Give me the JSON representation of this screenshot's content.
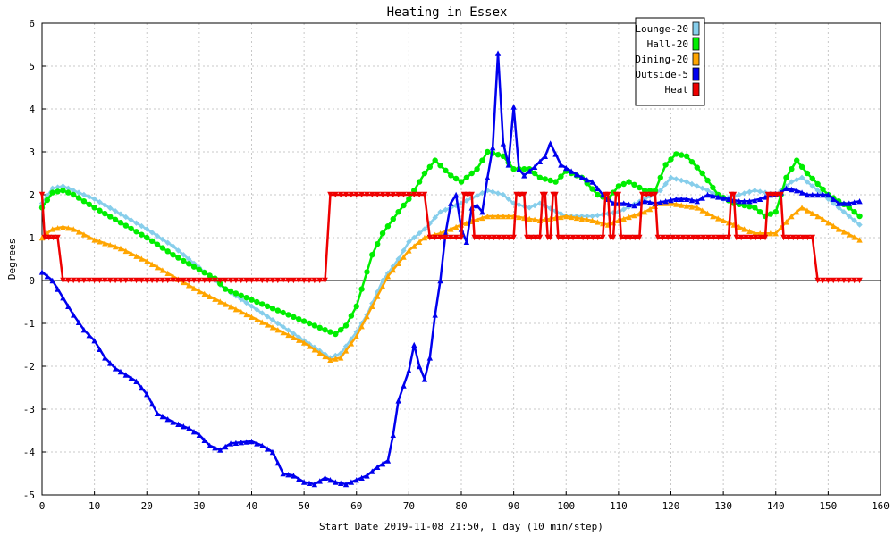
{
  "chart_data": {
    "type": "line",
    "title": "Heating in Essex",
    "xlabel": "Start Date 2019-11-08 21:50, 1 day (10 min/step)",
    "ylabel": "Degrees",
    "xlim": [
      0,
      160
    ],
    "ylim": [
      -5,
      6
    ],
    "x_ticks": [
      0,
      10,
      20,
      30,
      40,
      50,
      60,
      70,
      80,
      90,
      100,
      110,
      120,
      130,
      140,
      150,
      160
    ],
    "y_ticks": [
      -5,
      -4,
      -3,
      -2,
      -1,
      0,
      1,
      2,
      3,
      4,
      5,
      6
    ],
    "grid": true,
    "legend_position": "top-right",
    "series": [
      {
        "name": "Lounge-20",
        "color": "#87ceeb",
        "marker": "diamond",
        "points": [
          [
            0,
            1.8
          ],
          [
            2,
            2.15
          ],
          [
            4,
            2.2
          ],
          [
            6,
            2.1
          ],
          [
            10,
            1.9
          ],
          [
            15,
            1.55
          ],
          [
            20,
            1.2
          ],
          [
            25,
            0.8
          ],
          [
            30,
            0.3
          ],
          [
            35,
            -0.2
          ],
          [
            40,
            -0.6
          ],
          [
            45,
            -1.0
          ],
          [
            50,
            -1.4
          ],
          [
            55,
            -1.8
          ],
          [
            57,
            -1.7
          ],
          [
            60,
            -1.2
          ],
          [
            62,
            -0.8
          ],
          [
            65,
            0.0
          ],
          [
            68,
            0.5
          ],
          [
            70,
            0.9
          ],
          [
            73,
            1.2
          ],
          [
            76,
            1.6
          ],
          [
            80,
            1.8
          ],
          [
            85,
            2.1
          ],
          [
            88,
            2.0
          ],
          [
            90,
            1.8
          ],
          [
            93,
            1.7
          ],
          [
            95,
            1.8
          ],
          [
            100,
            1.5
          ],
          [
            105,
            1.5
          ],
          [
            110,
            1.6
          ],
          [
            115,
            1.9
          ],
          [
            118,
            2.1
          ],
          [
            120,
            2.4
          ],
          [
            123,
            2.3
          ],
          [
            127,
            2.1
          ],
          [
            130,
            1.9
          ],
          [
            133,
            2.0
          ],
          [
            136,
            2.1
          ],
          [
            140,
            2.0
          ],
          [
            143,
            2.3
          ],
          [
            145,
            2.4
          ],
          [
            148,
            2.1
          ],
          [
            152,
            1.7
          ],
          [
            156,
            1.3
          ]
        ]
      },
      {
        "name": "Hall-20",
        "color": "#00ee00",
        "marker": "circle",
        "points": [
          [
            0,
            1.7
          ],
          [
            2,
            2.05
          ],
          [
            4,
            2.1
          ],
          [
            6,
            2.0
          ],
          [
            10,
            1.7
          ],
          [
            15,
            1.35
          ],
          [
            20,
            1.0
          ],
          [
            25,
            0.6
          ],
          [
            30,
            0.25
          ],
          [
            33,
            0.05
          ],
          [
            35,
            -0.2
          ],
          [
            40,
            -0.45
          ],
          [
            45,
            -0.7
          ],
          [
            50,
            -0.95
          ],
          [
            55,
            -1.2
          ],
          [
            56,
            -1.25
          ],
          [
            58,
            -1.05
          ],
          [
            60,
            -0.6
          ],
          [
            62,
            0.2
          ],
          [
            63,
            0.6
          ],
          [
            65,
            1.1
          ],
          [
            68,
            1.6
          ],
          [
            70,
            1.9
          ],
          [
            73,
            2.5
          ],
          [
            75,
            2.8
          ],
          [
            78,
            2.45
          ],
          [
            80,
            2.3
          ],
          [
            83,
            2.6
          ],
          [
            85,
            3.0
          ],
          [
            88,
            2.9
          ],
          [
            90,
            2.6
          ],
          [
            93,
            2.6
          ],
          [
            95,
            2.4
          ],
          [
            98,
            2.3
          ],
          [
            100,
            2.55
          ],
          [
            103,
            2.4
          ],
          [
            106,
            2.0
          ],
          [
            108,
            1.9
          ],
          [
            110,
            2.2
          ],
          [
            112,
            2.3
          ],
          [
            115,
            2.1
          ],
          [
            117,
            2.1
          ],
          [
            119,
            2.7
          ],
          [
            121,
            2.95
          ],
          [
            123,
            2.9
          ],
          [
            126,
            2.5
          ],
          [
            129,
            2.0
          ],
          [
            132,
            1.8
          ],
          [
            136,
            1.7
          ],
          [
            138,
            1.5
          ],
          [
            140,
            1.6
          ],
          [
            142,
            2.4
          ],
          [
            144,
            2.8
          ],
          [
            146,
            2.5
          ],
          [
            150,
            2.0
          ],
          [
            154,
            1.7
          ],
          [
            156,
            1.5
          ]
        ]
      },
      {
        "name": "Dining-20",
        "color": "#ffa500",
        "marker": "triangle",
        "points": [
          [
            0,
            1.0
          ],
          [
            2,
            1.2
          ],
          [
            4,
            1.25
          ],
          [
            6,
            1.2
          ],
          [
            10,
            0.95
          ],
          [
            15,
            0.75
          ],
          [
            20,
            0.45
          ],
          [
            25,
            0.1
          ],
          [
            30,
            -0.25
          ],
          [
            35,
            -0.55
          ],
          [
            40,
            -0.85
          ],
          [
            45,
            -1.15
          ],
          [
            50,
            -1.45
          ],
          [
            55,
            -1.85
          ],
          [
            57,
            -1.8
          ],
          [
            60,
            -1.3
          ],
          [
            63,
            -0.6
          ],
          [
            66,
            0.1
          ],
          [
            70,
            0.7
          ],
          [
            73,
            1.0
          ],
          [
            76,
            1.1
          ],
          [
            80,
            1.3
          ],
          [
            85,
            1.5
          ],
          [
            90,
            1.5
          ],
          [
            95,
            1.4
          ],
          [
            100,
            1.5
          ],
          [
            105,
            1.4
          ],
          [
            108,
            1.3
          ],
          [
            110,
            1.4
          ],
          [
            115,
            1.6
          ],
          [
            118,
            1.8
          ],
          [
            120,
            1.8
          ],
          [
            125,
            1.7
          ],
          [
            128,
            1.5
          ],
          [
            132,
            1.3
          ],
          [
            136,
            1.1
          ],
          [
            140,
            1.1
          ],
          [
            143,
            1.5
          ],
          [
            145,
            1.7
          ],
          [
            148,
            1.5
          ],
          [
            152,
            1.2
          ],
          [
            156,
            0.95
          ]
        ]
      },
      {
        "name": "Outside-5",
        "color": "#0000ee",
        "marker": "triangle",
        "points": [
          [
            0,
            0.2
          ],
          [
            2,
            0.0
          ],
          [
            4,
            -0.4
          ],
          [
            6,
            -0.8
          ],
          [
            8,
            -1.15
          ],
          [
            10,
            -1.4
          ],
          [
            12,
            -1.8
          ],
          [
            14,
            -2.05
          ],
          [
            16,
            -2.2
          ],
          [
            18,
            -2.35
          ],
          [
            20,
            -2.65
          ],
          [
            22,
            -3.1
          ],
          [
            25,
            -3.3
          ],
          [
            28,
            -3.45
          ],
          [
            30,
            -3.6
          ],
          [
            32,
            -3.85
          ],
          [
            34,
            -3.95
          ],
          [
            36,
            -3.8
          ],
          [
            40,
            -3.75
          ],
          [
            42,
            -3.85
          ],
          [
            44,
            -4.0
          ],
          [
            46,
            -4.5
          ],
          [
            48,
            -4.55
          ],
          [
            50,
            -4.7
          ],
          [
            52,
            -4.75
          ],
          [
            54,
            -4.6
          ],
          [
            56,
            -4.7
          ],
          [
            58,
            -4.75
          ],
          [
            60,
            -4.65
          ],
          [
            62,
            -4.55
          ],
          [
            64,
            -4.35
          ],
          [
            66,
            -4.2
          ],
          [
            67,
            -3.6
          ],
          [
            68,
            -2.8
          ],
          [
            69,
            -2.45
          ],
          [
            70,
            -2.1
          ],
          [
            71,
            -1.5
          ],
          [
            72,
            -2.0
          ],
          [
            73,
            -2.3
          ],
          [
            74,
            -1.8
          ],
          [
            75,
            -0.8
          ],
          [
            76,
            0.0
          ],
          [
            77,
            1.1
          ],
          [
            78,
            1.8
          ],
          [
            79,
            2.0
          ],
          [
            80,
            1.2
          ],
          [
            81,
            0.9
          ],
          [
            82,
            1.7
          ],
          [
            83,
            1.75
          ],
          [
            84,
            1.6
          ],
          [
            85,
            2.4
          ],
          [
            86,
            3.1
          ],
          [
            87,
            5.3
          ],
          [
            88,
            3.2
          ],
          [
            89,
            2.7
          ],
          [
            90,
            4.05
          ],
          [
            91,
            2.6
          ],
          [
            92,
            2.45
          ],
          [
            94,
            2.65
          ],
          [
            96,
            2.9
          ],
          [
            97,
            3.2
          ],
          [
            99,
            2.7
          ],
          [
            101,
            2.55
          ],
          [
            103,
            2.4
          ],
          [
            105,
            2.3
          ],
          [
            107,
            2.0
          ],
          [
            109,
            1.8
          ],
          [
            111,
            1.8
          ],
          [
            113,
            1.75
          ],
          [
            115,
            1.85
          ],
          [
            117,
            1.8
          ],
          [
            119,
            1.85
          ],
          [
            121,
            1.9
          ],
          [
            123,
            1.9
          ],
          [
            125,
            1.85
          ],
          [
            127,
            2.0
          ],
          [
            129,
            1.95
          ],
          [
            131,
            1.9
          ],
          [
            133,
            1.85
          ],
          [
            135,
            1.85
          ],
          [
            137,
            1.9
          ],
          [
            139,
            2.0
          ],
          [
            141,
            2.05
          ],
          [
            142,
            2.15
          ],
          [
            144,
            2.1
          ],
          [
            146,
            2.0
          ],
          [
            148,
            2.0
          ],
          [
            150,
            2.0
          ],
          [
            152,
            1.8
          ],
          [
            154,
            1.8
          ],
          [
            156,
            1.85
          ]
        ]
      },
      {
        "name": "Heat",
        "color": "#ee0000",
        "marker": "triangle-down",
        "points": [
          [
            0,
            2
          ],
          [
            0.5,
            1
          ],
          [
            3,
            1
          ],
          [
            4,
            0
          ],
          [
            54,
            0
          ],
          [
            55,
            2
          ],
          [
            73,
            2
          ],
          [
            74,
            1
          ],
          [
            80,
            1
          ],
          [
            80.5,
            2
          ],
          [
            82,
            2
          ],
          [
            82.5,
            1
          ],
          [
            90,
            1
          ],
          [
            90.5,
            2
          ],
          [
            92,
            2
          ],
          [
            92.5,
            1
          ],
          [
            95,
            1
          ],
          [
            95.5,
            2
          ],
          [
            96,
            2
          ],
          [
            96.5,
            1
          ],
          [
            97,
            1
          ],
          [
            97.5,
            2
          ],
          [
            98,
            2
          ],
          [
            98.5,
            1
          ],
          [
            107,
            1
          ],
          [
            107.5,
            2
          ],
          [
            108,
            2
          ],
          [
            108.5,
            1
          ],
          [
            109,
            1
          ],
          [
            109.5,
            2
          ],
          [
            110,
            2
          ],
          [
            110.5,
            1
          ],
          [
            114,
            1
          ],
          [
            114.5,
            2
          ],
          [
            117,
            2
          ],
          [
            117.5,
            1
          ],
          [
            131,
            1
          ],
          [
            131.5,
            2
          ],
          [
            132,
            2
          ],
          [
            132.5,
            1
          ],
          [
            138,
            1
          ],
          [
            138.5,
            2
          ],
          [
            141,
            2
          ],
          [
            141.5,
            1
          ],
          [
            147,
            1
          ],
          [
            148,
            0
          ],
          [
            156,
            0
          ]
        ]
      }
    ]
  }
}
